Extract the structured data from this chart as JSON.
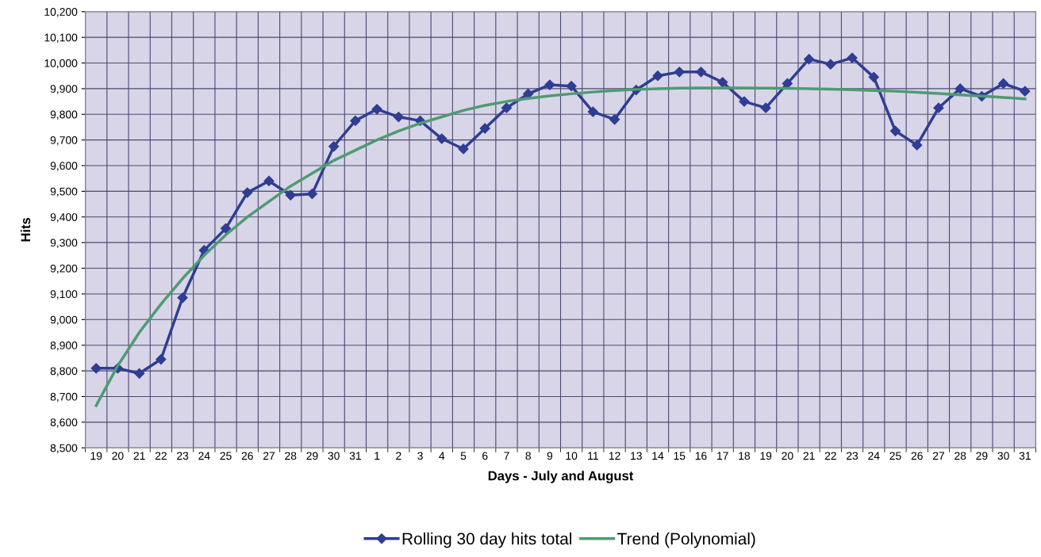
{
  "chart_data": {
    "type": "line",
    "xlabel": "Days - July and August",
    "ylabel": "Hits",
    "categories": [
      "19",
      "20",
      "21",
      "22",
      "23",
      "24",
      "25",
      "26",
      "27",
      "28",
      "29",
      "30",
      "31",
      "1",
      "2",
      "3",
      "4",
      "5",
      "6",
      "7",
      "8",
      "9",
      "10",
      "11",
      "12",
      "13",
      "14",
      "15",
      "16",
      "17",
      "18",
      "19",
      "20",
      "21",
      "22",
      "23",
      "24",
      "25",
      "26",
      "27",
      "28",
      "29",
      "30",
      "31"
    ],
    "series": [
      {
        "name": "Rolling 30 day hits total",
        "color": "#2f3d92",
        "marker": "diamond",
        "values": [
          8810,
          8810,
          8790,
          8845,
          9085,
          9270,
          9355,
          9495,
          9540,
          9485,
          9490,
          9675,
          9775,
          9820,
          9790,
          9775,
          9705,
          9665,
          9745,
          9825,
          9880,
          9915,
          9910,
          9810,
          9780,
          9895,
          9950,
          9965,
          9965,
          9925,
          9850,
          9825,
          9920,
          10015,
          9995,
          10020,
          9945,
          9735,
          9680,
          9825,
          9900,
          9870,
          9920,
          9890
        ]
      },
      {
        "name": "Trend (Polynomial)",
        "color": "#4f9a72",
        "marker": "none",
        "values": [
          8665,
          8820,
          8950,
          9060,
          9160,
          9250,
          9330,
          9400,
          9460,
          9520,
          9570,
          9620,
          9660,
          9700,
          9735,
          9765,
          9790,
          9815,
          9835,
          9850,
          9862,
          9872,
          9880,
          9887,
          9893,
          9897,
          9900,
          9902,
          9903,
          9903,
          9903,
          9902,
          9901,
          9900,
          9898,
          9896,
          9893,
          9890,
          9886,
          9881,
          9876,
          9871,
          9866,
          9860
        ]
      }
    ],
    "ylim": [
      8500,
      10200
    ],
    "yticks": [
      {
        "value": 8500,
        "label": "8,500"
      },
      {
        "value": 8600,
        "label": "8,600"
      },
      {
        "value": 8700,
        "label": "8,700"
      },
      {
        "value": 8800,
        "label": "8,800"
      },
      {
        "value": 8900,
        "label": "8,900"
      },
      {
        "value": 9000,
        "label": "9,000"
      },
      {
        "value": 9100,
        "label": "9,100"
      },
      {
        "value": 9200,
        "label": "9,200"
      },
      {
        "value": 9300,
        "label": "9,300"
      },
      {
        "value": 9400,
        "label": "9,400"
      },
      {
        "value": 9500,
        "label": "9,500"
      },
      {
        "value": 9600,
        "label": "9,600"
      },
      {
        "value": 9700,
        "label": "9,700"
      },
      {
        "value": 9800,
        "label": "9,800"
      },
      {
        "value": 9900,
        "label": "9,900"
      },
      {
        "value": 10000,
        "label": "10,000"
      },
      {
        "value": 10100,
        "label": "10,100"
      },
      {
        "value": 10200,
        "label": "10,200"
      }
    ],
    "grid": true,
    "legend": "bottom",
    "line_style": "solid"
  }
}
